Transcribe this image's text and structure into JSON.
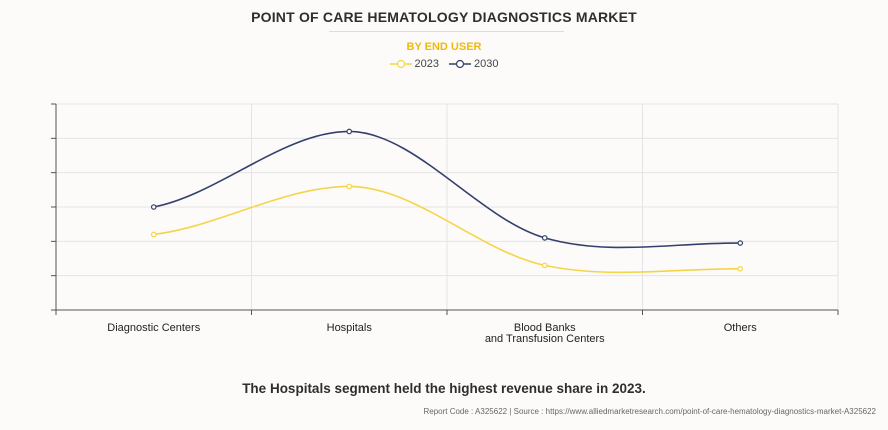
{
  "header": {
    "title": "POINT OF CARE HEMATOLOGY DIAGNOSTICS MARKET",
    "subtitle": "BY END USER"
  },
  "colors": {
    "series_2023": "#f5d547",
    "series_2030": "#34406b",
    "grid": "#e4e4e4",
    "axis": "#555555",
    "subtitle": "#f1b90c"
  },
  "chart_data": {
    "type": "line",
    "title": "POINT OF CARE HEMATOLOGY DIAGNOSTICS MARKET",
    "subtitle": "BY END USER",
    "categories": [
      "Diagnostic Centers",
      "Hospitals",
      "Blood Banks\nand Transfusion Centers",
      "Others"
    ],
    "series": [
      {
        "name": "2023",
        "values": [
          2.2,
          3.6,
          1.3,
          1.2
        ]
      },
      {
        "name": "2030",
        "values": [
          3.0,
          5.2,
          2.1,
          1.95
        ]
      }
    ],
    "ylim": [
      0,
      6
    ],
    "y_ticks_labeled": false,
    "xlabel": "",
    "ylabel": "",
    "grid": true,
    "legend_position": "top-center"
  },
  "footer": {
    "note": "The Hospitals segment held the highest revenue share in 2023.",
    "source": "Report Code : A325622  |  Source : https://www.alliedmarketresearch.com/point-of-care-hematology-diagnostics-market-A325622"
  }
}
